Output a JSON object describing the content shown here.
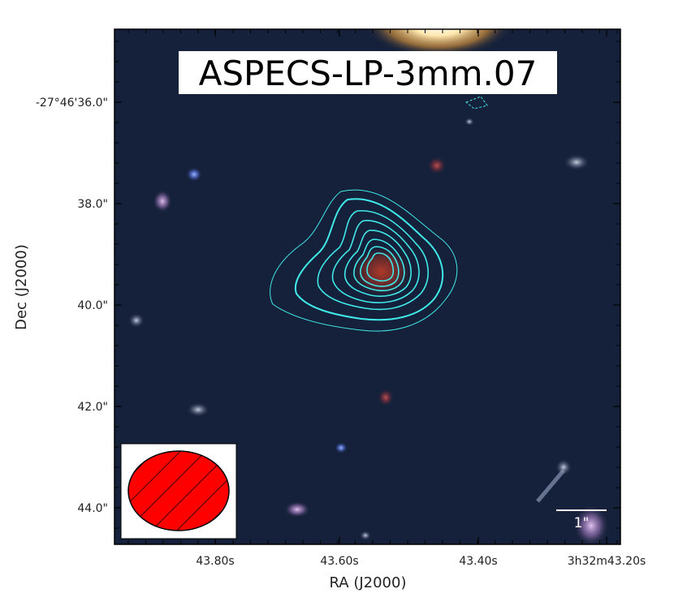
{
  "title": "ASPECS-LP-3mm.07",
  "x_axis": {
    "label": "RA (J2000)",
    "ticks": [
      "43.80s",
      "43.60s",
      "43.40s",
      "3h32m43.20s"
    ]
  },
  "y_axis": {
    "label": "Dec (J2000)",
    "ticks": [
      "-27°46'36.0\"",
      "38.0\"",
      "40.0\"",
      "42.0\"",
      "44.0\""
    ]
  },
  "scale_bar": {
    "label": "1\""
  },
  "beam": {
    "fill_color": "#ff0000",
    "hatch": "diagonal"
  },
  "contours": {
    "color": "#40e8e8",
    "levels": 9
  },
  "colors": {
    "sky": "#15213a",
    "frame": "#000000",
    "scale_bar": "#ffffff",
    "source": "#8a2a22"
  }
}
